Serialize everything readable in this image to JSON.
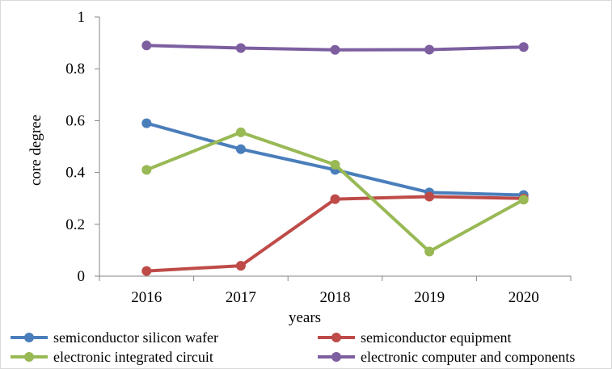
{
  "chart_data": {
    "type": "line",
    "title": "",
    "xlabel": "years",
    "ylabel": "core degree",
    "categories": [
      "2016",
      "2017",
      "2018",
      "2019",
      "2020"
    ],
    "ylim": [
      0,
      1
    ],
    "yticks": [
      "0",
      "0.2",
      "0.4",
      "0.6",
      "0.8",
      "1"
    ],
    "ytick_values": [
      0,
      0.2,
      0.4,
      0.6,
      0.8,
      1
    ],
    "grid": false,
    "legend_position": "bottom",
    "series": [
      {
        "name": "semiconductor silicon wafer",
        "color": "#4a7ebb",
        "values": [
          0.59,
          0.49,
          0.41,
          0.323,
          0.313
        ]
      },
      {
        "name": "semiconductor equipment",
        "color": "#be4b48",
        "values": [
          0.02,
          0.04,
          0.297,
          0.307,
          0.3
        ]
      },
      {
        "name": "electronic integrated circuit",
        "color": "#98b954",
        "values": [
          0.41,
          0.555,
          0.43,
          0.095,
          0.295
        ]
      },
      {
        "name": "electronic computer and components",
        "color": "#7d5fa0",
        "values": [
          0.89,
          0.88,
          0.873,
          0.874,
          0.884
        ]
      }
    ]
  }
}
